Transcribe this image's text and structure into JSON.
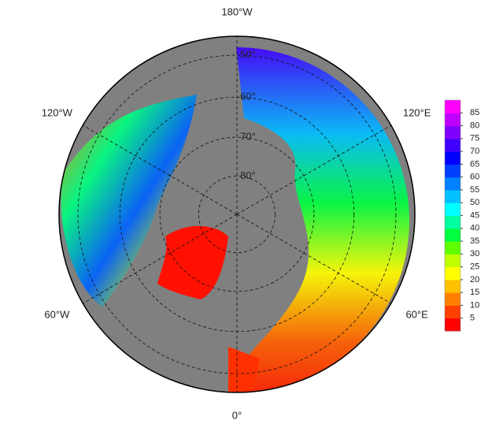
{
  "map": {
    "longitude_labels": [
      {
        "label": "180°W",
        "lon": 180
      },
      {
        "label": "120°W",
        "lon": -120
      },
      {
        "label": "120°E",
        "lon": 120
      },
      {
        "label": "60°W",
        "lon": -60
      },
      {
        "label": "60°E",
        "lon": 60
      },
      {
        "label": "0°",
        "lon": 0
      }
    ],
    "latitude_labels": [
      {
        "label": "50°",
        "lat": 50
      },
      {
        "label": "60°",
        "lat": 60
      },
      {
        "label": "70°",
        "lat": 70
      },
      {
        "label": "80°",
        "lat": 80
      }
    ],
    "colorbar": {
      "range": [
        0,
        90
      ],
      "ticks": [
        5,
        10,
        15,
        20,
        25,
        30,
        35,
        40,
        45,
        50,
        55,
        60,
        65,
        70,
        75,
        80,
        85
      ],
      "colors": [
        "#ff0000",
        "#ff4000",
        "#ff8000",
        "#ffc000",
        "#ffff00",
        "#c0ff00",
        "#60ff00",
        "#00ff40",
        "#00ffa0",
        "#00ffff",
        "#00c0ff",
        "#0080ff",
        "#0040ff",
        "#0000ff",
        "#4000ff",
        "#8000ff",
        "#c000ff",
        "#ff00ff"
      ]
    }
  }
}
